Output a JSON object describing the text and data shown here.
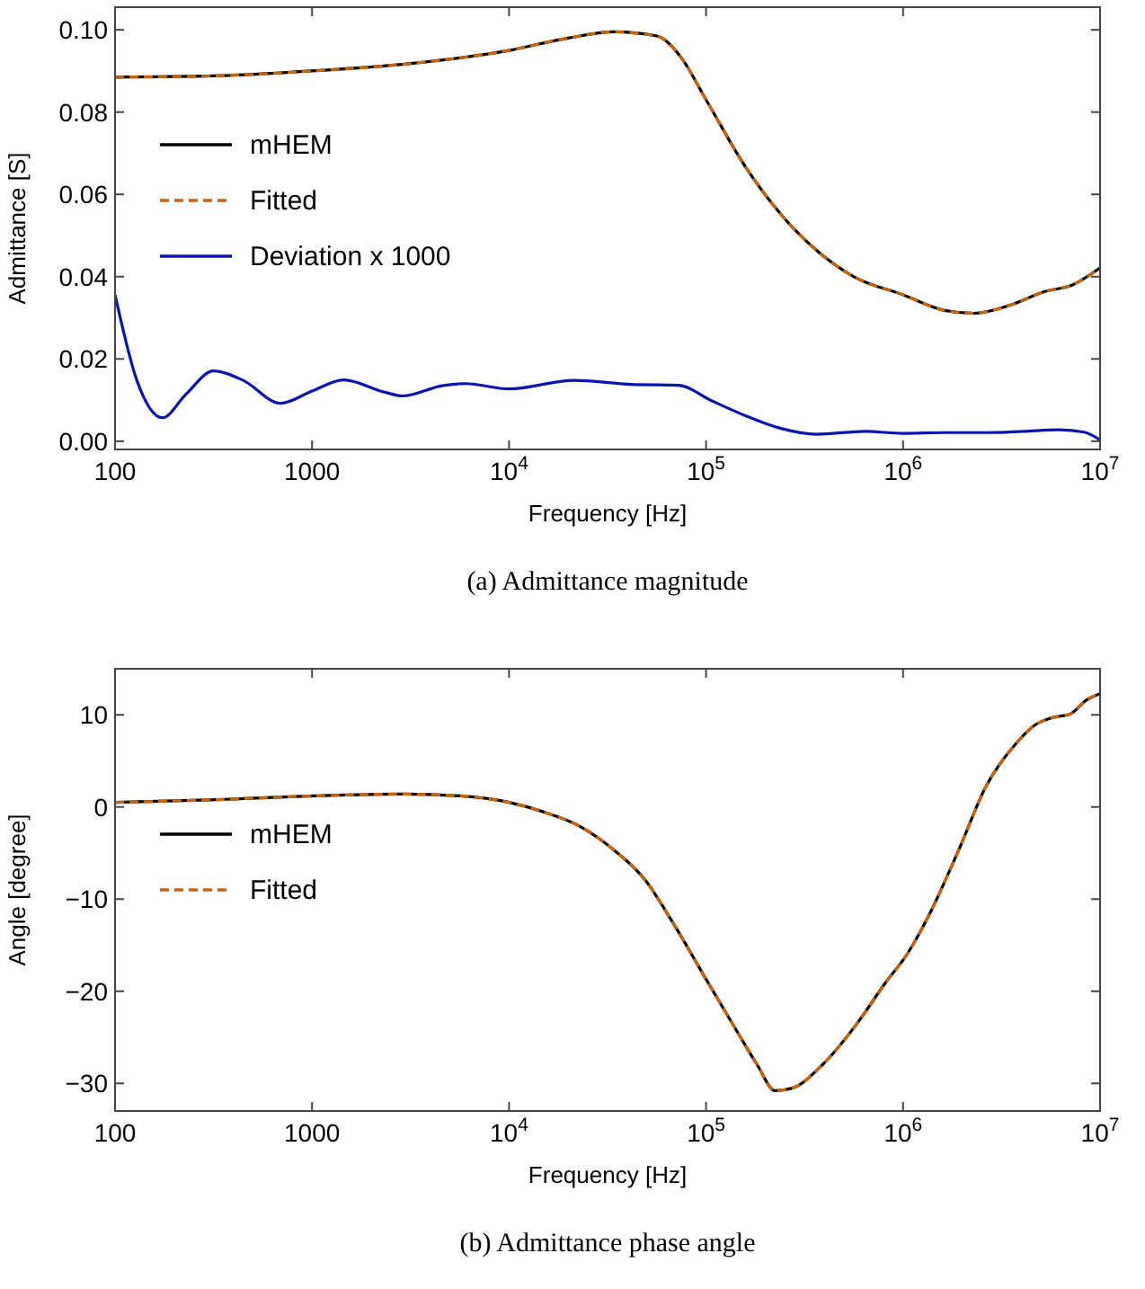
{
  "chart_data": [
    {
      "type": "line",
      "xlabel": "Frequency [Hz]",
      "ylabel": "Admittance [S]",
      "annotations": [
        "(a) Admittance magnitude"
      ],
      "log": "x",
      "xlim": [
        100,
        10000000
      ],
      "ylim": [
        -0.002,
        0.1055
      ],
      "xticks": [
        {
          "value": 100,
          "label": "100"
        },
        {
          "value": 1000,
          "label": "1000"
        },
        {
          "value": 10000,
          "label": "10$^{4}$"
        },
        {
          "value": 100000,
          "label": "10$^{5}$"
        },
        {
          "value": 1000000,
          "label": "10$^{6}$"
        },
        {
          "value": 10000000,
          "label": "10$^{7}$"
        }
      ],
      "yticks": [
        {
          "value": 0,
          "label": "0.00"
        },
        {
          "value": 0.02,
          "label": "0.02"
        },
        {
          "value": 0.04,
          "label": "0.04"
        },
        {
          "value": 0.06,
          "label": "0.06"
        },
        {
          "value": 0.08,
          "label": "0.08"
        },
        {
          "value": 0.1,
          "label": "0.10"
        }
      ],
      "grid": false,
      "legend": "left",
      "marker": "none",
      "series": [
        {
          "name": "mHEM",
          "color": "#000000",
          "line_style": "solid",
          "x": [
            100,
            316,
            1000,
            3162,
            10000,
            19953,
            33884,
            56234,
            74131,
            100000,
            158489,
            245471,
            371535,
            562341,
            1000000,
            1621810,
            2290868,
            3467369,
            5248075,
            7244360,
            10000000
          ],
          "values": [
            0.0885,
            0.0888,
            0.09,
            0.0918,
            0.095,
            0.098,
            0.0995,
            0.0985,
            0.0935,
            0.083,
            0.0667,
            0.0546,
            0.046,
            0.04,
            0.0356,
            0.0318,
            0.0311,
            0.033,
            0.0364,
            0.038,
            0.0421
          ]
        },
        {
          "name": "Fitted",
          "color": "#c8640a",
          "line_style": "dashed",
          "x": [
            100,
            316,
            1000,
            3162,
            10000,
            19953,
            33884,
            56234,
            74131,
            100000,
            158489,
            245471,
            371535,
            562341,
            1000000,
            1621810,
            2290868,
            3467369,
            5248075,
            7244360,
            10000000
          ],
          "values": [
            0.0885,
            0.0888,
            0.09,
            0.0918,
            0.095,
            0.098,
            0.0995,
            0.0985,
            0.0935,
            0.083,
            0.0667,
            0.0546,
            0.046,
            0.04,
            0.0356,
            0.0318,
            0.0311,
            0.033,
            0.0364,
            0.038,
            0.0421
          ]
        },
        {
          "name": "Deviation x 1000",
          "color": "#0a14b4",
          "line_style": "solid",
          "x": [
            100,
            129,
            174,
            229,
            316,
            447,
            692,
            1000,
            1445,
            2344,
            2884,
            4571,
            6026,
            10000,
            21380,
            41687,
            72444,
            107152,
            158489,
            239883,
            363078,
            645654,
            1000000,
            1621810,
            2691535,
            4073803,
            6165950,
            8317638,
            10000000
          ],
          "values": [
            0.0356,
            0.0148,
            0.0057,
            0.0114,
            0.0171,
            0.0148,
            0.0092,
            0.0122,
            0.0149,
            0.0119,
            0.011,
            0.0135,
            0.014,
            0.0127,
            0.0148,
            0.0138,
            0.0136,
            0.0098,
            0.0062,
            0.0031,
            0.0017,
            0.0024,
            0.0019,
            0.0021,
            0.0021,
            0.0024,
            0.0028,
            0.0022,
            0.0003
          ]
        }
      ]
    },
    {
      "type": "line",
      "xlabel": "Frequency [Hz]",
      "ylabel": "Angle [degree]",
      "annotations": [
        "(b) Admittance phase angle"
      ],
      "log": "x",
      "xlim": [
        100,
        10000000
      ],
      "ylim": [
        -33,
        15
      ],
      "xticks": [
        {
          "value": 100,
          "label": "100"
        },
        {
          "value": 1000,
          "label": "1000"
        },
        {
          "value": 10000,
          "label": "10$^{4}$"
        },
        {
          "value": 100000,
          "label": "10$^{5}$"
        },
        {
          "value": 1000000,
          "label": "10$^{6}$"
        },
        {
          "value": 10000000,
          "label": "10$^{7}$"
        }
      ],
      "yticks": [
        {
          "value": -30,
          "label": "−30"
        },
        {
          "value": -20,
          "label": "−20"
        },
        {
          "value": -10,
          "label": "−10"
        },
        0,
        10
      ],
      "grid": false,
      "legend": "left",
      "marker": "none",
      "series": [
        {
          "name": "mHEM",
          "color": "#000000",
          "line_style": "solid",
          "x": [
            100,
            331,
            1023,
            2884,
            5623,
            10000,
            14791,
            22909,
            34674,
            48978,
            67608,
            100000,
            141254,
            181970,
            223872,
            275423,
            389045,
            588844,
            812831,
            1047129,
            1348963,
            1905461,
            2630268,
            3715352,
            4677351,
            5754399,
            7079458,
            8511380,
            10000000
          ],
          "values": [
            0.5,
            0.8,
            1.2,
            1.4,
            1.2,
            0.5,
            -0.5,
            -2.1,
            -4.8,
            -7.9,
            -12.5,
            -18.7,
            -24.1,
            -28,
            -30.8,
            -30.5,
            -28,
            -23.4,
            -19.1,
            -16,
            -11.8,
            -4.8,
            2.2,
            6.8,
            8.9,
            9.7,
            10.1,
            11.6,
            12.3
          ]
        },
        {
          "name": "Fitted",
          "color": "#c8640a",
          "line_style": "dashed",
          "x": [
            100,
            331,
            1023,
            2884,
            5623,
            10000,
            14791,
            22909,
            34674,
            48978,
            67608,
            100000,
            141254,
            181970,
            223872,
            275423,
            389045,
            588844,
            812831,
            1047129,
            1348963,
            1905461,
            2630268,
            3715352,
            4677351,
            5754399,
            7079458,
            8511380,
            10000000
          ],
          "values": [
            0.5,
            0.8,
            1.2,
            1.4,
            1.2,
            0.5,
            -0.5,
            -2.1,
            -4.8,
            -7.9,
            -12.5,
            -18.7,
            -24.1,
            -28,
            -30.8,
            -30.5,
            -28,
            -23.4,
            -19.1,
            -16,
            -11.8,
            -4.8,
            2.2,
            6.8,
            8.9,
            9.7,
            10.1,
            11.6,
            12.3
          ]
        }
      ]
    }
  ]
}
